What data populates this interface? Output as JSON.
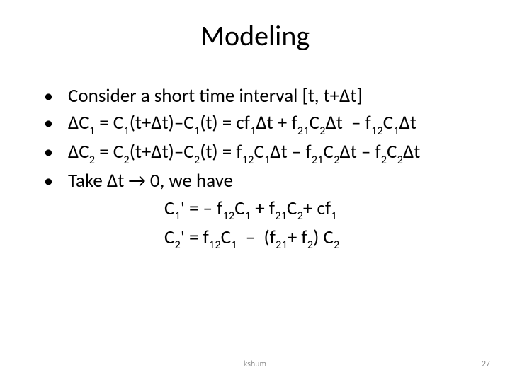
{
  "colors": {
    "bg": "#ffffff",
    "text": "#000000",
    "footer": "#8b8b8b"
  },
  "typography": {
    "title_fontsize": 40,
    "body_fontsize": 27,
    "footer_fontsize": 12,
    "font_family": "Calibri"
  },
  "title": "Modeling",
  "bullets": [
    "Consider a short time interval [t, t+∆t]",
    "∆C₁ = C₁(t+∆t)–C₁(t) = cf₁∆t + f₂₁C₂∆t  – f₁₂C₁∆t",
    "∆C₂ = C₂(t+∆t)–C₂(t) = f₁₂C₁∆t – f₂₁C₂∆t – f₂C₂∆t",
    "Take ∆t → 0, we have"
  ],
  "equations": [
    "C₁' = – f₁₂C₁ + f₂₁C₂+ cf₁",
    "C₂' = f₁₂C₁  –  (f₂₁+ f₂) C₂"
  ],
  "footer": {
    "center": "kshum",
    "page": "27"
  },
  "delta": "∆",
  "arrow": "→"
}
